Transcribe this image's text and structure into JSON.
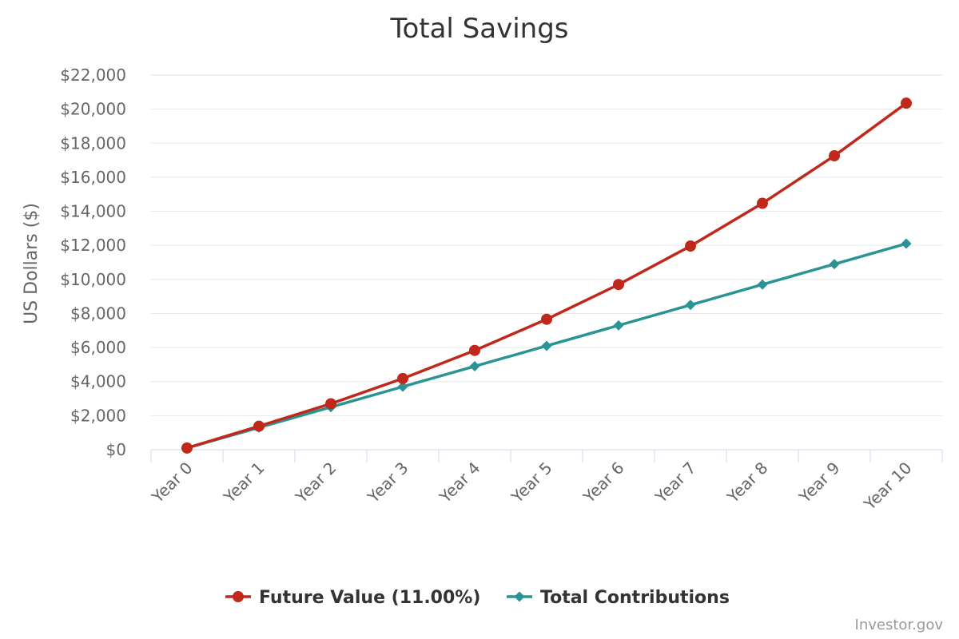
{
  "chart_data": {
    "type": "line",
    "title": "Total Savings",
    "ylabel": "US Dollars ($)",
    "xlabel": "",
    "categories": [
      "Year 0",
      "Year 1",
      "Year 2",
      "Year 3",
      "Year 4",
      "Year 5",
      "Year 6",
      "Year 7",
      "Year 8",
      "Year 9",
      "Year 10"
    ],
    "ylim": [
      0,
      22000
    ],
    "yticks": [
      0,
      2000,
      4000,
      6000,
      8000,
      10000,
      12000,
      14000,
      16000,
      18000,
      20000,
      22000
    ],
    "ytick_labels": [
      "$0",
      "$2,000",
      "$4,000",
      "$6,000",
      "$8,000",
      "$10,000",
      "$12,000",
      "$14,000",
      "$16,000",
      "$18,000",
      "$20,000",
      "$22,000"
    ],
    "grid": true,
    "legend_position": "bottom-center",
    "series": [
      {
        "name": "Future Value (11.00%)",
        "color": "#c0281b",
        "marker": "circle",
        "values": [
          100,
          1380,
          2700,
          4180,
          5830,
          7660,
          9700,
          11960,
          14470,
          17260,
          20350
        ]
      },
      {
        "name": "Total Contributions",
        "color": "#2a9494",
        "marker": "diamond",
        "values": [
          100,
          1300,
          2500,
          3700,
          4900,
          6100,
          7300,
          8500,
          9700,
          10900,
          12100
        ]
      }
    ],
    "credit": "Investor.gov"
  }
}
